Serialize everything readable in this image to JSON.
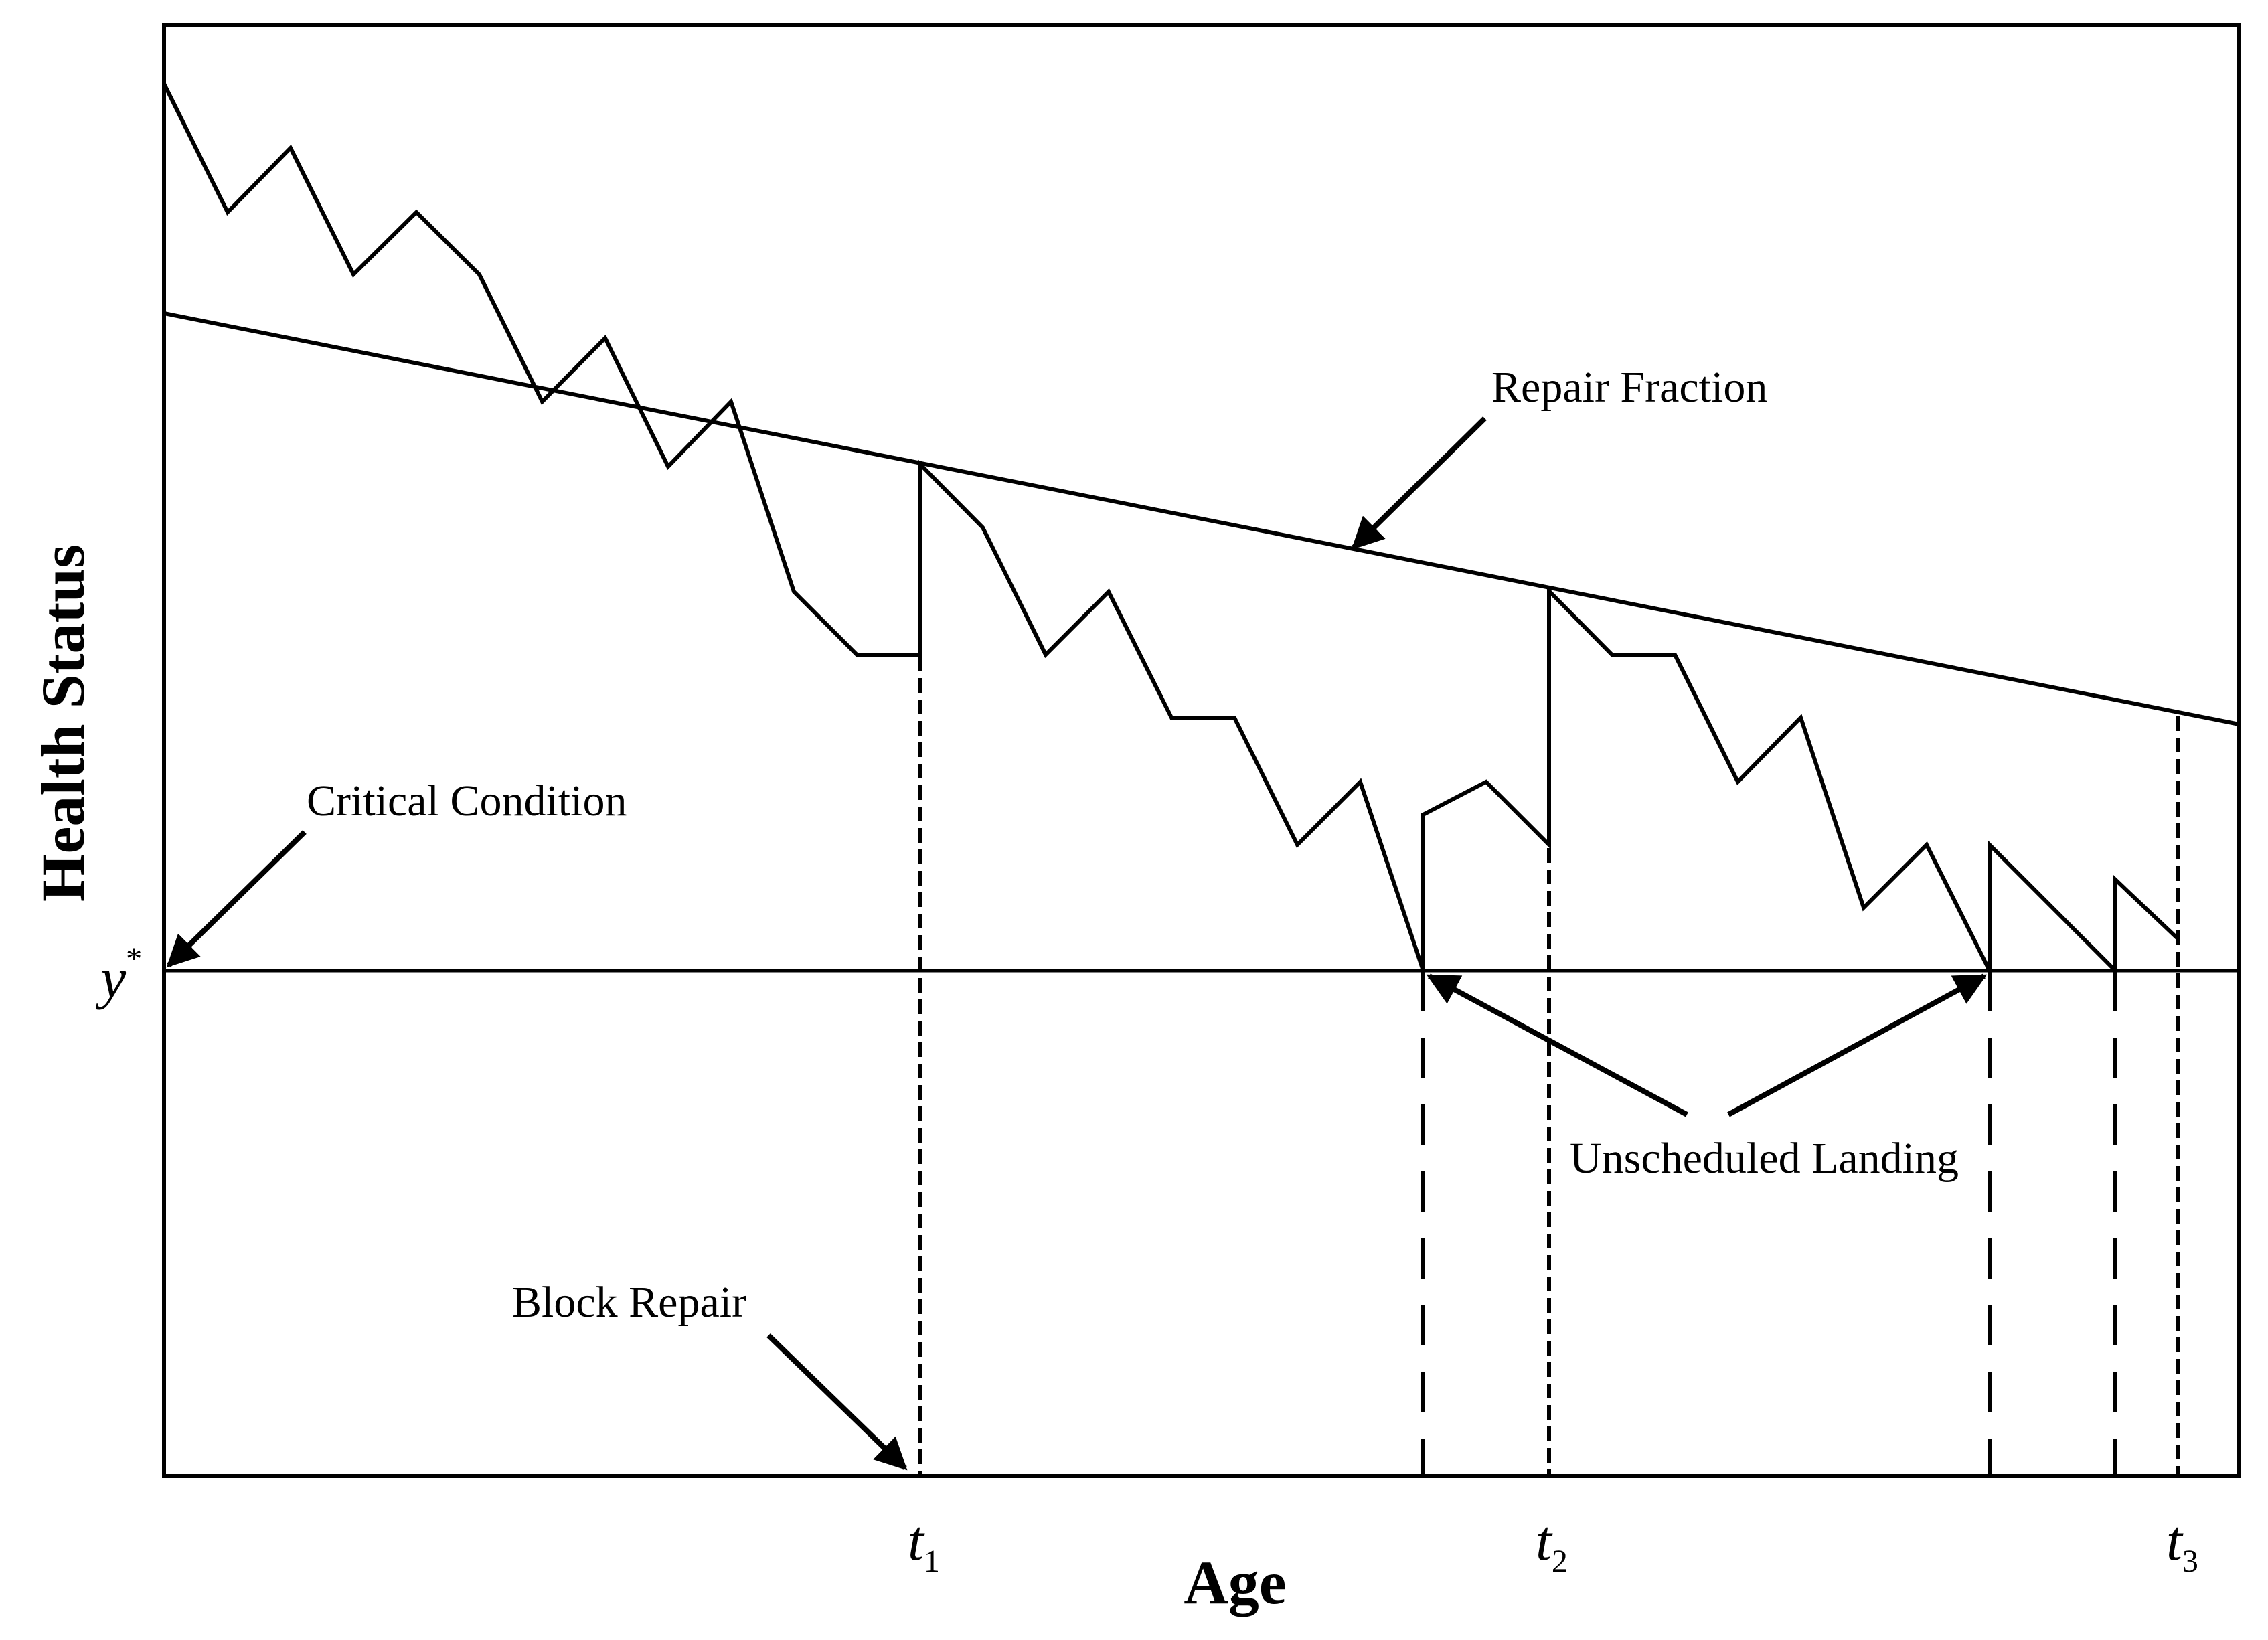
{
  "diagram": {
    "type": "line",
    "x_axis_label": "Age",
    "y_axis_label": "Health Status",
    "threshold_label": "y",
    "threshold_superscript": "*",
    "ticks": [
      {
        "base": "t",
        "sub": "1"
      },
      {
        "base": "t",
        "sub": "2"
      },
      {
        "base": "t",
        "sub": "3"
      }
    ],
    "annotations": {
      "repair_fraction": "Repair Fraction",
      "critical_condition": "Critical Condition",
      "unscheduled_landing": "Unscheduled Landing",
      "block_repair": "Block Repair"
    },
    "colors": {
      "line": "#000000",
      "background": "#ffffff"
    }
  }
}
